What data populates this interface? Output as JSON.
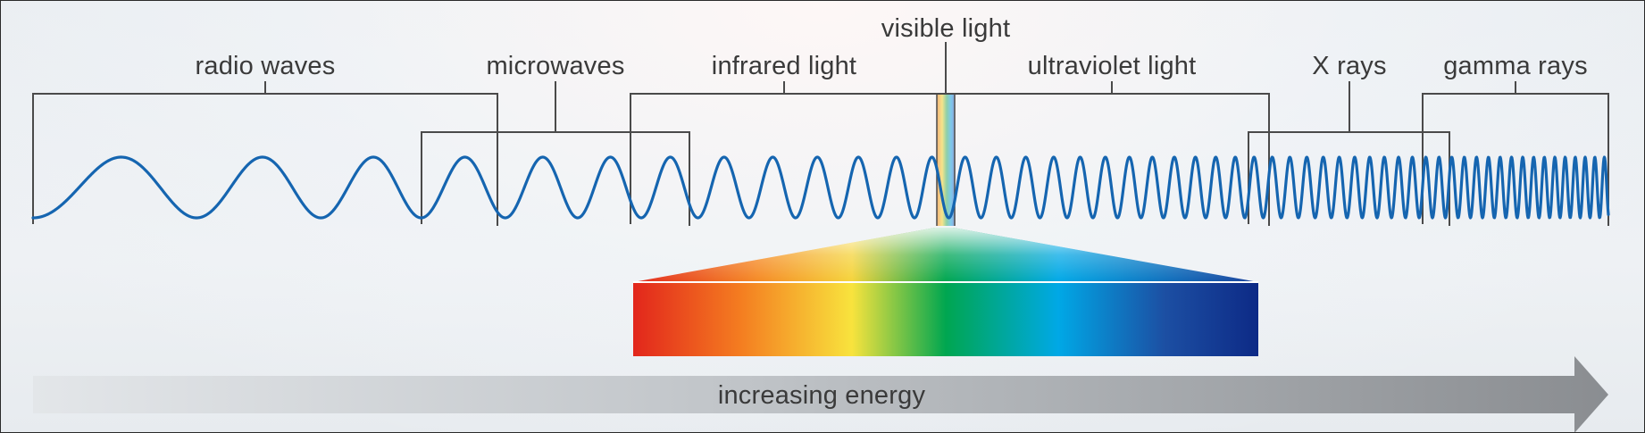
{
  "bands": {
    "radio": "radio waves",
    "microwave": "microwaves",
    "infrared": "infrared light",
    "visible": "visible light",
    "ultraviolet": "ultraviolet light",
    "xray": "X rays",
    "gamma": "gamma rays"
  },
  "energy_arrow": {
    "label": "increasing energy"
  },
  "colors": {
    "wave": "#1565b0",
    "bracket": "#4a4a4a",
    "text": "#3a3a3a",
    "spectrum": [
      "#e2261c",
      "#f47c20",
      "#f8e33d",
      "#00a650",
      "#00a8e6",
      "#1c4fa3",
      "#0d2a86"
    ]
  }
}
